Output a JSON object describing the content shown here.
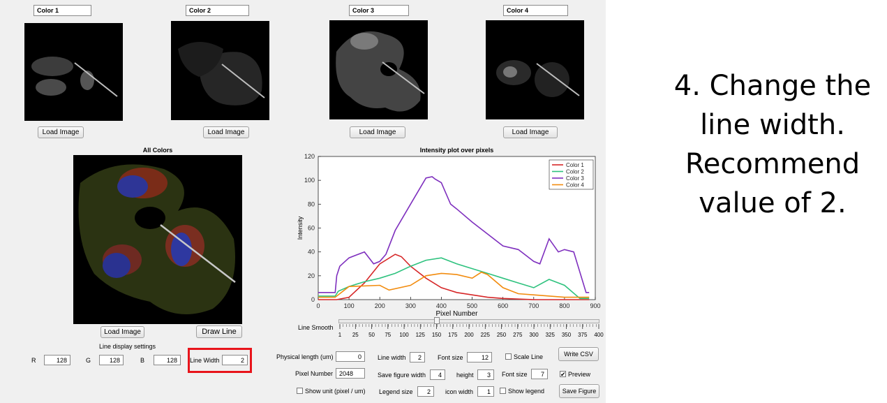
{
  "channels": [
    {
      "title": "Color 1",
      "button": "Load Image"
    },
    {
      "title": "Color 2",
      "button": "Load Image"
    },
    {
      "title": "Color 3",
      "button": "Load Image"
    },
    {
      "title": "Color 4",
      "button": "Load Image"
    }
  ],
  "composite": {
    "title": "All Colors",
    "load_button": "Load Image",
    "draw_button": "Draw Line"
  },
  "line_settings": {
    "title": "Line display settings",
    "r_label": "R",
    "r_value": "128",
    "g_label": "G",
    "g_value": "128",
    "b_label": "B",
    "b_value": "128",
    "width_label": "Line Width",
    "width_value": "2"
  },
  "smooth": {
    "label": "Line Smooth",
    "ticks": [
      "1",
      "25",
      "50",
      "75",
      "100",
      "125",
      "150",
      "175",
      "200",
      "225",
      "250",
      "275",
      "300",
      "325",
      "350",
      "375",
      "400"
    ],
    "value": 150,
    "min": 1,
    "max": 400
  },
  "controls": {
    "physical_length_label": "Physical length (um)",
    "physical_length_value": "0",
    "pixel_number_label": "Pixel Number",
    "pixel_number_value": "2048",
    "show_unit_label": "Show unit (pixel / um)",
    "show_unit_checked": false,
    "line_width_label": "Line width",
    "line_width_value": "2",
    "save_fig_width_label": "Save figure width",
    "save_fig_width_value": "4",
    "legend_size_label": "Legend size",
    "legend_size_value": "2",
    "font_size_label": "Font size",
    "font_size_value": "12",
    "height_label": "height",
    "height_value": "3",
    "icon_width_label": "icon width",
    "icon_width_value": "1",
    "scale_line_label": "Scale Line",
    "scale_line_checked": false,
    "font_size2_label": "Font size",
    "font_size2_value": "7",
    "show_legend_label": "Show legend",
    "show_legend_checked": false,
    "preview_label": "Preview",
    "preview_checked": true,
    "write_csv_label": "Write CSV",
    "save_figure_label": "Save Figure"
  },
  "instruction": {
    "line1": "4. Change the",
    "line2": "line width.",
    "line3": "Recommend",
    "line4": "value of 2."
  },
  "chart_data": {
    "type": "line",
    "title": "Intensity plot over pixels",
    "xlabel": "Pixel Number",
    "ylabel": "Intensity",
    "xlim": [
      0,
      900
    ],
    "ylim": [
      0,
      120
    ],
    "xticks": [
      0,
      100,
      200,
      300,
      400,
      500,
      600,
      700,
      800,
      900
    ],
    "yticks": [
      0,
      20,
      40,
      60,
      80,
      100,
      120
    ],
    "grid": false,
    "legend_position": "top-right",
    "series": [
      {
        "name": "Color 1",
        "color": "#d62728",
        "x": [
          0,
          60,
          100,
          150,
          200,
          250,
          270,
          300,
          350,
          400,
          450,
          500,
          550,
          600,
          700,
          800,
          880
        ],
        "y": [
          0,
          0,
          2,
          14,
          30,
          38,
          36,
          28,
          18,
          10,
          6,
          4,
          2,
          1,
          0,
          0,
          0
        ]
      },
      {
        "name": "Color 2",
        "color": "#2ec27e",
        "x": [
          0,
          55,
          65,
          100,
          150,
          200,
          250,
          300,
          350,
          400,
          450,
          500,
          550,
          600,
          650,
          700,
          750,
          800,
          850,
          880
        ],
        "y": [
          3,
          3,
          7,
          11,
          15,
          18,
          22,
          28,
          33,
          35,
          30,
          26,
          22,
          18,
          14,
          10,
          17,
          12,
          1,
          1
        ]
      },
      {
        "name": "Color 3",
        "color": "#7e2fbe",
        "x": [
          0,
          55,
          60,
          70,
          100,
          150,
          180,
          200,
          220,
          250,
          300,
          350,
          370,
          380,
          400,
          430,
          450,
          500,
          550,
          600,
          650,
          700,
          720,
          750,
          780,
          800,
          830,
          870,
          880
        ],
        "y": [
          6,
          6,
          20,
          28,
          35,
          40,
          30,
          32,
          38,
          58,
          80,
          102,
          103,
          101,
          98,
          80,
          76,
          65,
          55,
          45,
          42,
          32,
          30,
          51,
          40,
          42,
          40,
          6,
          6
        ]
      },
      {
        "name": "Color 4",
        "color": "#f28c0f",
        "x": [
          0,
          55,
          100,
          200,
          230,
          300,
          350,
          400,
          450,
          500,
          530,
          550,
          600,
          650,
          700,
          800,
          880
        ],
        "y": [
          2,
          2,
          11,
          12,
          8,
          12,
          20,
          22,
          21,
          18,
          23,
          21,
          10,
          5,
          4,
          2,
          2
        ]
      }
    ]
  }
}
